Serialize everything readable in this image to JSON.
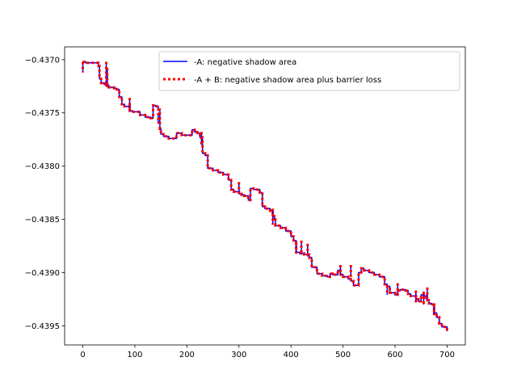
{
  "chart_data": {
    "type": "line",
    "title": "",
    "xlabel": "",
    "ylabel": "",
    "xlim": [
      -35,
      735
    ],
    "ylim": [
      -0.43968,
      -0.43688
    ],
    "xticks": [
      0,
      100,
      200,
      300,
      400,
      500,
      600,
      700
    ],
    "xtick_labels": [
      "0",
      "100",
      "200",
      "300",
      "400",
      "500",
      "600",
      "700"
    ],
    "yticks": [
      -0.437,
      -0.4375,
      -0.438,
      -0.4385,
      -0.439,
      -0.4395
    ],
    "ytick_labels": [
      "−0.4370",
      "−0.4375",
      "−0.4380",
      "−0.4385",
      "−0.4390",
      "−0.4395"
    ],
    "grid": false,
    "legend_position": "top-right",
    "series": [
      {
        "name": "-A: negative shadow area",
        "color": "#0000ff",
        "style": "solid",
        "x": [
          0,
          5,
          25,
          30,
          32,
          35,
          42,
          45,
          47,
          50,
          60,
          65,
          70,
          75,
          80,
          90,
          95,
          110,
          120,
          130,
          135,
          140,
          145,
          148,
          150,
          155,
          165,
          175,
          180,
          190,
          200,
          210,
          215,
          220,
          225,
          230,
          235,
          240,
          250,
          260,
          270,
          280,
          285,
          290,
          300,
          305,
          310,
          318,
          322,
          328,
          335,
          340,
          345,
          350,
          360,
          365,
          368,
          370,
          380,
          390,
          400,
          405,
          410,
          418,
          420,
          425,
          430,
          435,
          440,
          450,
          460,
          470,
          475,
          480,
          490,
          495,
          500,
          510,
          515,
          520,
          530,
          535,
          540,
          550,
          560,
          570,
          580,
          585,
          590,
          600,
          605,
          610,
          620,
          625,
          630,
          640,
          645,
          650,
          655,
          660,
          662,
          665,
          670,
          675,
          680,
          685,
          690,
          700
        ],
        "y": [
          -0.43702,
          -0.43703,
          -0.43703,
          -0.43706,
          -0.43718,
          -0.43722,
          -0.43723,
          -0.43725,
          -0.43724,
          -0.43726,
          -0.43727,
          -0.43728,
          -0.43735,
          -0.43742,
          -0.43744,
          -0.43748,
          -0.43749,
          -0.43752,
          -0.43754,
          -0.43755,
          -0.43743,
          -0.43744,
          -0.43747,
          -0.43765,
          -0.4377,
          -0.43772,
          -0.43774,
          -0.43774,
          -0.43769,
          -0.43771,
          -0.43771,
          -0.43766,
          -0.43768,
          -0.43769,
          -0.43773,
          -0.43788,
          -0.4379,
          -0.43802,
          -0.43804,
          -0.43806,
          -0.43808,
          -0.43813,
          -0.43822,
          -0.43824,
          -0.43826,
          -0.43827,
          -0.43828,
          -0.43832,
          -0.43821,
          -0.43822,
          -0.43822,
          -0.43825,
          -0.43838,
          -0.4384,
          -0.43842,
          -0.43847,
          -0.4385,
          -0.43856,
          -0.43858,
          -0.43861,
          -0.43866,
          -0.4387,
          -0.43881,
          -0.43882,
          -0.43882,
          -0.43883,
          -0.43883,
          -0.43886,
          -0.43895,
          -0.43901,
          -0.43903,
          -0.43904,
          -0.43901,
          -0.43902,
          -0.43898,
          -0.43902,
          -0.43904,
          -0.43906,
          -0.43908,
          -0.43912,
          -0.439,
          -0.43896,
          -0.43898,
          -0.439,
          -0.43902,
          -0.43904,
          -0.43911,
          -0.43913,
          -0.43919,
          -0.43921,
          -0.43917,
          -0.43916,
          -0.43917,
          -0.4392,
          -0.43922,
          -0.43925,
          -0.43927,
          -0.43921,
          -0.43922,
          -0.43924,
          -0.43926,
          -0.43929,
          -0.4393,
          -0.43938,
          -0.43942,
          -0.43948,
          -0.43951,
          -0.43955
        ]
      },
      {
        "name": "-A + B: negative shadow area plus barrier loss",
        "color": "#ff0000",
        "style": "dotted",
        "x": [
          0,
          5,
          25,
          30,
          32,
          35,
          42,
          45,
          47,
          50,
          60,
          65,
          70,
          75,
          80,
          90,
          95,
          110,
          120,
          130,
          135,
          140,
          145,
          148,
          150,
          155,
          165,
          175,
          180,
          190,
          200,
          210,
          215,
          220,
          225,
          230,
          235,
          240,
          250,
          260,
          270,
          280,
          285,
          290,
          300,
          305,
          310,
          318,
          322,
          328,
          335,
          340,
          345,
          350,
          360,
          365,
          368,
          370,
          380,
          390,
          400,
          405,
          410,
          418,
          420,
          425,
          430,
          435,
          440,
          450,
          460,
          470,
          475,
          480,
          490,
          495,
          500,
          510,
          515,
          520,
          530,
          535,
          540,
          550,
          560,
          570,
          580,
          585,
          590,
          600,
          605,
          610,
          620,
          625,
          630,
          640,
          645,
          650,
          655,
          660,
          662,
          665,
          670,
          675,
          680,
          685,
          690,
          700
        ],
        "y": [
          -0.43702,
          -0.43703,
          -0.43703,
          -0.43706,
          -0.43718,
          -0.43722,
          -0.43723,
          -0.43725,
          -0.43724,
          -0.43726,
          -0.43727,
          -0.43728,
          -0.43735,
          -0.43742,
          -0.43744,
          -0.43748,
          -0.43749,
          -0.43752,
          -0.43754,
          -0.43755,
          -0.43743,
          -0.43744,
          -0.43747,
          -0.43765,
          -0.4377,
          -0.43772,
          -0.43774,
          -0.43774,
          -0.43769,
          -0.43771,
          -0.43771,
          -0.43766,
          -0.43768,
          -0.43769,
          -0.43773,
          -0.43788,
          -0.4379,
          -0.43802,
          -0.43804,
          -0.43806,
          -0.43808,
          -0.43813,
          -0.43822,
          -0.43824,
          -0.43826,
          -0.43827,
          -0.43828,
          -0.43832,
          -0.43821,
          -0.43822,
          -0.43822,
          -0.43825,
          -0.43838,
          -0.4384,
          -0.43842,
          -0.43847,
          -0.4385,
          -0.43856,
          -0.43858,
          -0.43861,
          -0.43866,
          -0.4387,
          -0.43881,
          -0.43882,
          -0.43882,
          -0.43883,
          -0.43883,
          -0.43886,
          -0.43895,
          -0.43901,
          -0.43903,
          -0.43904,
          -0.43901,
          -0.43902,
          -0.43898,
          -0.43902,
          -0.43904,
          -0.43906,
          -0.43908,
          -0.43912,
          -0.439,
          -0.43896,
          -0.43898,
          -0.439,
          -0.43902,
          -0.43904,
          -0.43911,
          -0.43913,
          -0.43919,
          -0.43921,
          -0.43917,
          -0.43916,
          -0.43917,
          -0.4392,
          -0.43922,
          -0.43925,
          -0.43927,
          -0.43921,
          -0.43922,
          -0.43924,
          -0.43926,
          -0.43929,
          -0.4393,
          -0.43938,
          -0.43942,
          -0.43948,
          -0.43951,
          -0.43955
        ]
      }
    ],
    "spikes": [
      {
        "x": 0,
        "y1": -0.43702,
        "y2": -0.43712
      },
      {
        "x": 45,
        "y1": -0.43702,
        "y2": -0.43725
      },
      {
        "x": 47,
        "y1": -0.43708,
        "y2": -0.43724
      },
      {
        "x": 90,
        "y1": -0.43736,
        "y2": -0.43748
      },
      {
        "x": 145,
        "y1": -0.4375,
        "y2": -0.4376
      },
      {
        "x": 228,
        "y1": -0.43768,
        "y2": -0.4378
      },
      {
        "x": 300,
        "y1": -0.43815,
        "y2": -0.43826
      },
      {
        "x": 365,
        "y1": -0.4384,
        "y2": -0.43855
      },
      {
        "x": 410,
        "y1": -0.43872,
        "y2": -0.43882
      },
      {
        "x": 420,
        "y1": -0.4387,
        "y2": -0.43883
      },
      {
        "x": 432,
        "y1": -0.43873,
        "y2": -0.43885
      },
      {
        "x": 495,
        "y1": -0.43893,
        "y2": -0.43902
      },
      {
        "x": 515,
        "y1": -0.43893,
        "y2": -0.43904
      },
      {
        "x": 585,
        "y1": -0.43912,
        "y2": -0.43921
      },
      {
        "x": 605,
        "y1": -0.4391,
        "y2": -0.43917
      },
      {
        "x": 640,
        "y1": -0.43917,
        "y2": -0.43928
      },
      {
        "x": 655,
        "y1": -0.43918,
        "y2": -0.4393
      },
      {
        "x": 662,
        "y1": -0.43914,
        "y2": -0.43924
      },
      {
        "x": 675,
        "y1": -0.4393,
        "y2": -0.4394
      }
    ]
  }
}
